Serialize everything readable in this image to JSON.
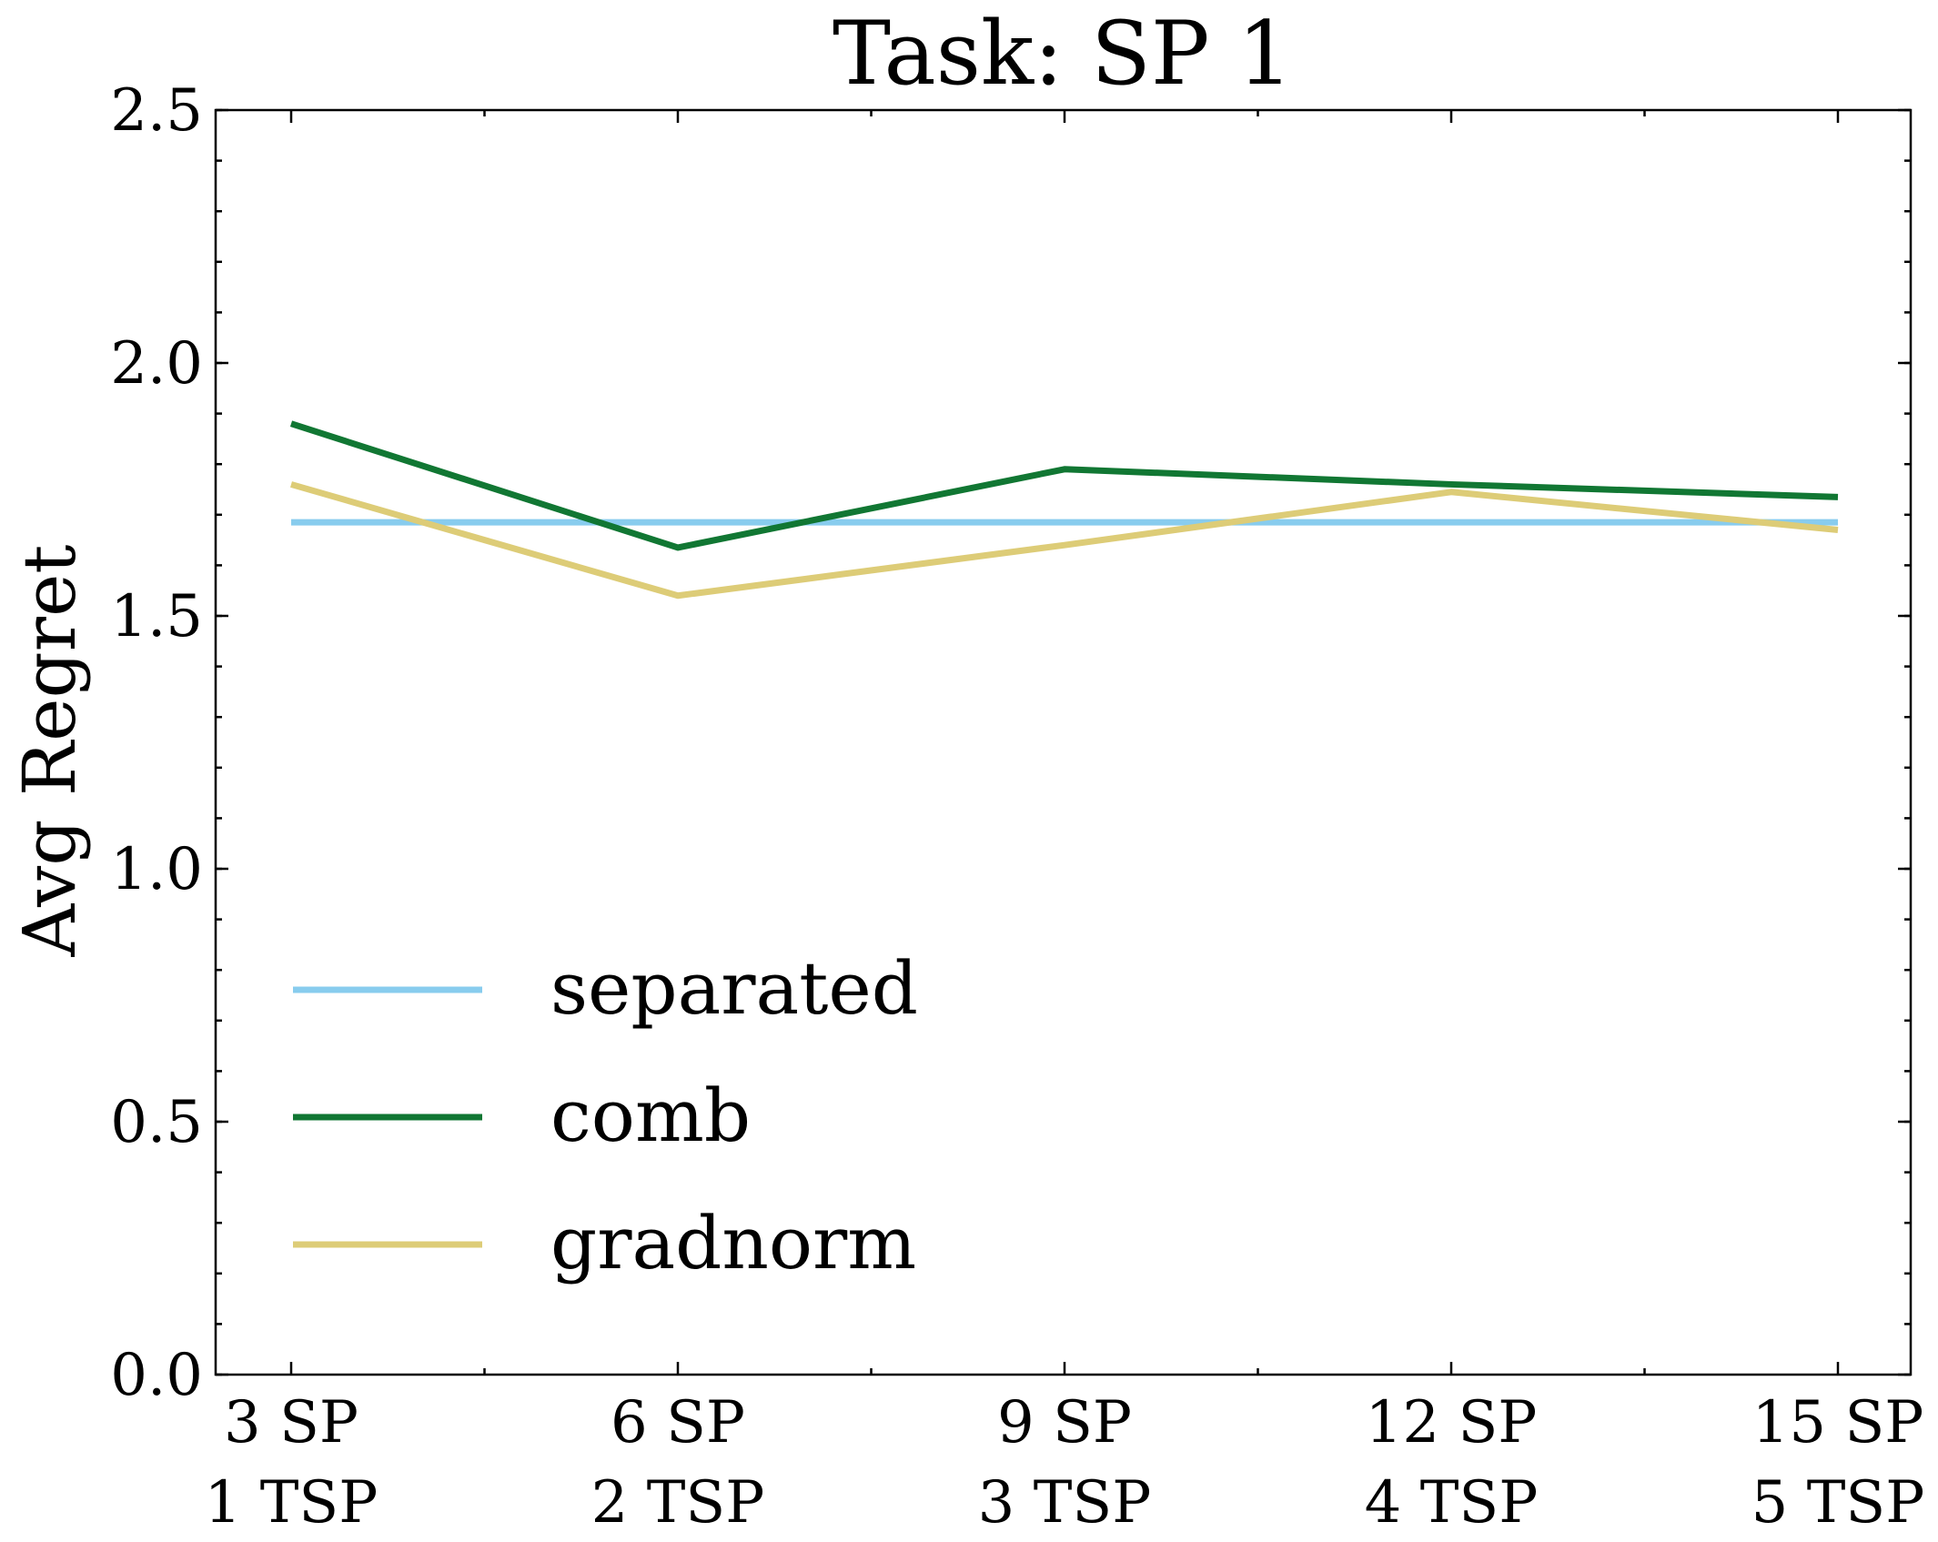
{
  "chart_data": {
    "type": "line",
    "title": "Task: SP 1",
    "xlabel": "",
    "ylabel": "Avg Regret",
    "categories": [
      [
        "3 SP",
        "1 TSP"
      ],
      [
        "6 SP",
        "2 TSP"
      ],
      [
        "9 SP",
        "3 TSP"
      ],
      [
        "12 SP",
        "4 TSP"
      ],
      [
        "15 SP",
        "5 TSP"
      ]
    ],
    "ylim": [
      0.0,
      2.5
    ],
    "yticks": [
      "0.0",
      "0.5",
      "1.0",
      "1.5",
      "2.0",
      "2.5"
    ],
    "grid": false,
    "legend_position": "lower-left",
    "series": [
      {
        "name": "separated",
        "color": "#88CCEE",
        "values": [
          1.685,
          1.685,
          1.685,
          1.685,
          1.685
        ]
      },
      {
        "name": "comb",
        "color": "#117733",
        "values": [
          1.88,
          1.635,
          1.79,
          1.76,
          1.735
        ]
      },
      {
        "name": "gradnorm",
        "color": "#DDCC77",
        "values": [
          1.76,
          1.54,
          1.64,
          1.745,
          1.67
        ]
      }
    ]
  }
}
